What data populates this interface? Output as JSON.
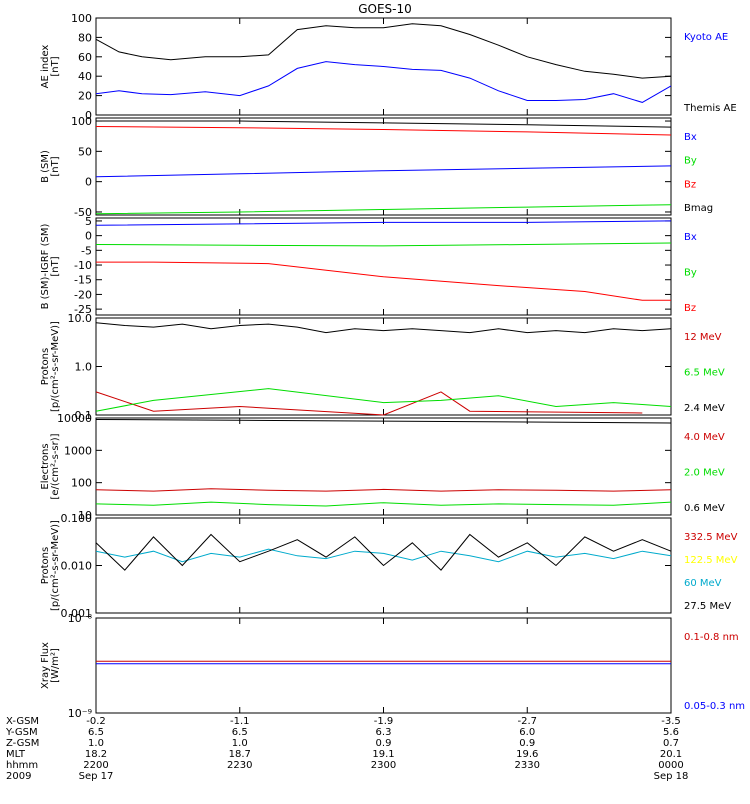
{
  "title": "GOES-10",
  "colors": {
    "black": "#000000",
    "blue": "#0000ff",
    "red": "#ff0000",
    "darkred": "#cc0000",
    "green": "#00dd00",
    "yellow": "#ffff00",
    "cyan": "#00aacc"
  },
  "chart_data": [
    {
      "type": "line",
      "ylabel": "AE index\n[nT]",
      "ylim": [
        0,
        100
      ],
      "yscale": "linear",
      "yticks": [
        0,
        20,
        40,
        60,
        80,
        100
      ],
      "ytick_labels": [
        "0",
        "20",
        "40",
        "60",
        "80",
        "100"
      ],
      "series": [
        {
          "name": "Kyoto AE",
          "color": "#0000ff",
          "x": [
            0,
            0.04,
            0.08,
            0.13,
            0.19,
            0.25,
            0.3,
            0.35,
            0.4,
            0.45,
            0.5,
            0.55,
            0.6,
            0.65,
            0.7,
            0.75,
            0.8,
            0.85,
            0.9,
            0.95,
            1.0
          ],
          "values": [
            22,
            25,
            22,
            21,
            24,
            20,
            30,
            48,
            55,
            52,
            50,
            47,
            46,
            38,
            25,
            15,
            15,
            16,
            22,
            13,
            30
          ]
        },
        {
          "name": "Themis AE",
          "color": "#000000",
          "x": [
            0,
            0.04,
            0.08,
            0.13,
            0.19,
            0.25,
            0.3,
            0.35,
            0.4,
            0.45,
            0.5,
            0.55,
            0.6,
            0.65,
            0.7,
            0.75,
            0.8,
            0.85,
            0.9,
            0.95,
            1.0
          ],
          "values": [
            78,
            65,
            60,
            57,
            60,
            60,
            62,
            88,
            92,
            90,
            90,
            94,
            92,
            83,
            72,
            60,
            52,
            45,
            42,
            38,
            40
          ]
        }
      ],
      "legend": [
        {
          "label": "Kyoto AE",
          "color": "#0000ff"
        },
        {
          "label": "Themis AE",
          "color": "#000000"
        }
      ]
    },
    {
      "type": "line",
      "ylabel": "B (SM)\n[nT]",
      "ylim": [
        -55,
        105
      ],
      "yscale": "linear",
      "yticks": [
        -50,
        0,
        50,
        100
      ],
      "ytick_labels": [
        "-50",
        "0",
        "50",
        "100"
      ],
      "series": [
        {
          "name": "Bx",
          "color": "#0000ff",
          "x": [
            0,
            0.25,
            0.5,
            0.75,
            1.0
          ],
          "values": [
            8,
            13,
            18,
            22,
            26
          ]
        },
        {
          "name": "By",
          "color": "#00dd00",
          "x": [
            0,
            0.25,
            0.5,
            0.75,
            1.0
          ],
          "values": [
            -53,
            -50,
            -46,
            -42,
            -38
          ]
        },
        {
          "name": "Bz",
          "color": "#ff0000",
          "x": [
            0,
            0.25,
            0.5,
            0.75,
            1.0
          ],
          "values": [
            91,
            89,
            86,
            82,
            77
          ]
        },
        {
          "name": "Bmag",
          "color": "#000000",
          "x": [
            0,
            0.25,
            0.5,
            0.75,
            1.0
          ],
          "values": [
            100,
            100,
            97,
            94,
            90
          ]
        }
      ],
      "legend": [
        {
          "label": "Bx",
          "color": "#0000ff"
        },
        {
          "label": "By",
          "color": "#00dd00"
        },
        {
          "label": "Bz",
          "color": "#ff0000"
        },
        {
          "label": "Bmag",
          "color": "#000000"
        }
      ]
    },
    {
      "type": "line",
      "ylabel": "B (SM)-IGRF (SM)\n[nT]",
      "ylim": [
        -27,
        6
      ],
      "yscale": "linear",
      "yticks": [
        5,
        0,
        -5,
        -10,
        -15,
        -20,
        -25
      ],
      "ytick_labels": [
        "5",
        "0",
        "-5",
        "-10",
        "-15",
        "-20",
        "-25"
      ],
      "series": [
        {
          "name": "Bx",
          "color": "#0000ff",
          "x": [
            0,
            0.25,
            0.5,
            0.75,
            1.0
          ],
          "values": [
            3.5,
            4,
            4.5,
            4.5,
            5
          ]
        },
        {
          "name": "By",
          "color": "#00dd00",
          "x": [
            0,
            0.25,
            0.5,
            0.75,
            1.0
          ],
          "values": [
            -3,
            -3.3,
            -3.5,
            -3,
            -2.5
          ]
        },
        {
          "name": "Bz",
          "color": "#ff0000",
          "x": [
            0,
            0.1,
            0.3,
            0.5,
            0.7,
            0.85,
            0.95,
            1.0
          ],
          "values": [
            -9,
            -9,
            -9.5,
            -14,
            -17,
            -19,
            -22,
            -22
          ]
        }
      ],
      "legend": [
        {
          "label": "Bx",
          "color": "#0000ff"
        },
        {
          "label": "By",
          "color": "#00dd00"
        },
        {
          "label": "Bz",
          "color": "#ff0000"
        }
      ]
    },
    {
      "type": "line",
      "ylabel": "Protons\n[p/(cm²-s-sr-MeV)]",
      "ylim": [
        0.1,
        10
      ],
      "yscale": "log",
      "yticks": [
        10,
        1,
        0.1
      ],
      "ytick_labels": [
        "10.0",
        "1.0",
        "0.1"
      ],
      "series": [
        {
          "name": "12 MeV",
          "color": "#cc0000",
          "x": [
            0.0,
            0.1,
            0.25,
            0.5,
            0.6,
            0.65,
            0.95
          ],
          "values": [
            0.3,
            0.12,
            0.15,
            0.1,
            0.3,
            0.12,
            0.11
          ]
        },
        {
          "name": "6.5 MeV",
          "color": "#00dd00",
          "x": [
            0.0,
            0.1,
            0.3,
            0.5,
            0.6,
            0.7,
            0.8,
            0.9,
            1.0
          ],
          "values": [
            0.12,
            0.2,
            0.35,
            0.18,
            0.2,
            0.25,
            0.15,
            0.18,
            0.15
          ]
        },
        {
          "name": "2.4 MeV",
          "color": "#000000",
          "x": [
            0,
            0.05,
            0.1,
            0.15,
            0.2,
            0.25,
            0.3,
            0.35,
            0.4,
            0.45,
            0.5,
            0.55,
            0.6,
            0.65,
            0.7,
            0.75,
            0.8,
            0.85,
            0.9,
            0.95,
            1.0
          ],
          "values": [
            8,
            7,
            6.5,
            7.5,
            6,
            7,
            7.5,
            6.5,
            5,
            6,
            5.5,
            6,
            5.5,
            5,
            6,
            5,
            5.5,
            5,
            6,
            5.5,
            6
          ]
        }
      ],
      "legend": [
        {
          "label": "12 MeV",
          "color": "#cc0000"
        },
        {
          "label": "6.5 MeV",
          "color": "#00dd00"
        },
        {
          "label": "2.4 MeV",
          "color": "#000000"
        }
      ]
    },
    {
      "type": "line",
      "ylabel": "Electrons\n[e/(cm²-s-sr)]",
      "ylim": [
        10,
        10000
      ],
      "yscale": "log",
      "yticks": [
        10000,
        1000,
        100,
        10
      ],
      "ytick_labels": [
        "10000",
        "1000",
        "100",
        "10"
      ],
      "series": [
        {
          "name": "4.0 MeV",
          "color": "#cc0000",
          "x": [
            0,
            0.1,
            0.2,
            0.3,
            0.4,
            0.5,
            0.6,
            0.7,
            0.8,
            0.9,
            1.0
          ],
          "values": [
            60,
            55,
            65,
            58,
            55,
            62,
            55,
            60,
            58,
            55,
            60
          ]
        },
        {
          "name": "2.0 MeV",
          "color": "#00dd00",
          "x": [
            0,
            0.1,
            0.2,
            0.3,
            0.4,
            0.5,
            0.6,
            0.7,
            0.8,
            0.9,
            1.0
          ],
          "values": [
            22,
            20,
            25,
            21,
            19,
            24,
            20,
            22,
            21,
            20,
            25
          ]
        },
        {
          "name": "0.6 MeV",
          "color": "#000000",
          "x": [
            0,
            0.25,
            0.5,
            0.75,
            1.0
          ],
          "values": [
            9000,
            8500,
            8000,
            7500,
            7000
          ]
        }
      ],
      "legend": [
        {
          "label": "4.0 MeV",
          "color": "#cc0000"
        },
        {
          "label": "2.0 MeV",
          "color": "#00dd00"
        },
        {
          "label": "0.6 MeV",
          "color": "#000000"
        }
      ]
    },
    {
      "type": "line",
      "ylabel": "Protons\n[p/(cm²-s-sr-MeV)]",
      "ylim": [
        0.001,
        0.1
      ],
      "yscale": "log",
      "yticks": [
        0.1,
        0.01,
        0.001
      ],
      "ytick_labels": [
        "0.100",
        "0.010",
        "0.001"
      ],
      "series": [
        {
          "name": "332.5 MeV",
          "color": "#cc0000",
          "x": [],
          "values": []
        },
        {
          "name": "122.5 MeV",
          "color": "#ffff00",
          "x": [],
          "values": []
        },
        {
          "name": "60 MeV",
          "color": "#00aacc",
          "x": [
            0,
            0.05,
            0.1,
            0.15,
            0.2,
            0.25,
            0.3,
            0.35,
            0.4,
            0.45,
            0.5,
            0.55,
            0.6,
            0.65,
            0.7,
            0.75,
            0.8,
            0.85,
            0.9,
            0.95,
            1.0
          ],
          "values": [
            0.02,
            0.015,
            0.02,
            0.012,
            0.018,
            0.015,
            0.022,
            0.016,
            0.014,
            0.02,
            0.018,
            0.013,
            0.02,
            0.016,
            0.012,
            0.02,
            0.015,
            0.018,
            0.014,
            0.02,
            0.016
          ]
        },
        {
          "name": "27.5 MeV",
          "color": "#000000",
          "x": [
            0,
            0.05,
            0.1,
            0.15,
            0.2,
            0.25,
            0.3,
            0.35,
            0.4,
            0.45,
            0.5,
            0.55,
            0.6,
            0.65,
            0.7,
            0.75,
            0.8,
            0.85,
            0.9,
            0.95,
            1.0
          ],
          "values": [
            0.03,
            0.008,
            0.04,
            0.01,
            0.045,
            0.012,
            0.02,
            0.035,
            0.015,
            0.04,
            0.01,
            0.03,
            0.008,
            0.045,
            0.015,
            0.03,
            0.01,
            0.04,
            0.02,
            0.035,
            0.02
          ]
        }
      ],
      "legend": [
        {
          "label": "332.5 MeV",
          "color": "#cc0000"
        },
        {
          "label": "122.5 MeV",
          "color": "#ffff00"
        },
        {
          "label": "60 MeV",
          "color": "#00aacc"
        },
        {
          "label": "27.5 MeV",
          "color": "#000000"
        }
      ]
    },
    {
      "type": "line",
      "ylabel": "Xray Flux\n[W/m²]",
      "ylim": [
        1e-09,
        1e-08
      ],
      "yscale": "log",
      "yticks": [
        1e-08,
        1e-09
      ],
      "ytick_labels": [
        "10⁻⁸",
        "10⁻⁹"
      ],
      "series": [
        {
          "name": "0.1-0.8 nm",
          "color": "#cc0000",
          "x": [
            0,
            0.5,
            1.0
          ],
          "values": [
            3.5e-09,
            3.5e-09,
            3.5e-09
          ]
        },
        {
          "name": "0.05-0.3 nm",
          "color": "#0000ff",
          "x": [
            0,
            0.5,
            1.0
          ],
          "values": [
            3.3e-09,
            3.3e-09,
            3.3e-09
          ]
        }
      ],
      "legend": [
        {
          "label": "0.1-0.8 nm",
          "color": "#cc0000"
        },
        {
          "label": "0.05-0.3 nm",
          "color": "#0000ff"
        }
      ]
    }
  ],
  "xaxis": {
    "row_labels": [
      "X-GSM",
      "Y-GSM",
      "Z-GSM",
      "MLT",
      "hhmm",
      "2009"
    ],
    "ticks": [
      {
        "col": [
          "-0.2",
          "6.5",
          "1.0",
          "18.2",
          "2200",
          "Sep 17"
        ]
      },
      {
        "col": [
          "-1.1",
          "6.5",
          "1.0",
          "18.7",
          "2230",
          ""
        ]
      },
      {
        "col": [
          "-1.9",
          "6.3",
          "0.9",
          "19.1",
          "2300",
          ""
        ]
      },
      {
        "col": [
          "-2.7",
          "6.0",
          "0.9",
          "19.6",
          "2330",
          ""
        ]
      },
      {
        "col": [
          "-3.5",
          "5.6",
          "0.7",
          "20.1",
          "0000",
          "Sep 18"
        ]
      }
    ]
  }
}
